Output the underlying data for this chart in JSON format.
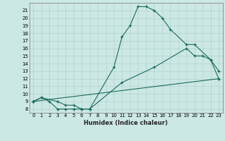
{
  "title": "",
  "xlabel": "Humidex (Indice chaleur)",
  "bg_color": "#cce8e4",
  "grid_color": "#aacccc",
  "line_color": "#1a6b5a",
  "xlim": [
    -0.5,
    23.5
  ],
  "ylim": [
    7.5,
    22.0
  ],
  "xticks": [
    0,
    1,
    2,
    3,
    4,
    5,
    6,
    7,
    8,
    9,
    10,
    11,
    12,
    13,
    14,
    15,
    16,
    17,
    18,
    19,
    20,
    21,
    22,
    23
  ],
  "yticks": [
    8,
    9,
    10,
    11,
    12,
    13,
    14,
    15,
    16,
    17,
    18,
    19,
    20,
    21
  ],
  "line1_x": [
    0,
    1,
    2,
    3,
    4,
    5,
    6,
    7,
    10,
    11,
    12,
    13,
    14,
    15,
    16,
    17,
    19,
    20,
    22,
    23
  ],
  "line1_y": [
    9.0,
    9.5,
    9.0,
    8.0,
    8.0,
    8.0,
    8.0,
    8.0,
    13.5,
    17.5,
    19.0,
    21.5,
    21.5,
    21.0,
    20.0,
    18.5,
    16.5,
    16.5,
    14.5,
    12.0
  ],
  "line2_x": [
    0,
    1,
    3,
    4,
    5,
    6,
    7,
    11,
    15,
    19,
    20,
    21,
    22,
    23
  ],
  "line2_y": [
    9.0,
    9.5,
    9.0,
    8.5,
    8.5,
    8.0,
    8.0,
    11.5,
    13.5,
    16.0,
    15.0,
    15.0,
    14.5,
    13.0
  ],
  "line3_x": [
    0,
    23
  ],
  "line3_y": [
    9.0,
    12.0
  ],
  "xlabel_fontsize": 6.0,
  "tick_fontsize": 5.0
}
